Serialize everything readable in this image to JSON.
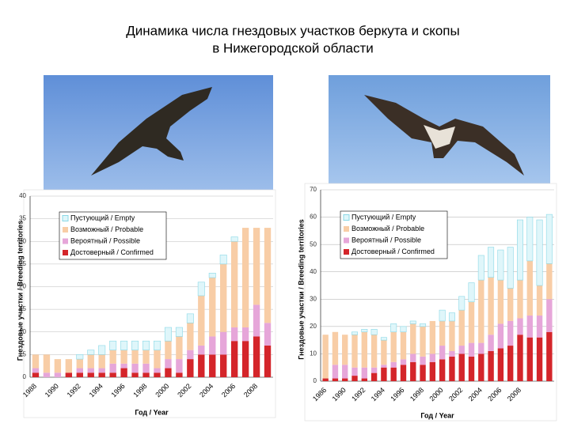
{
  "title": [
    "Динамика числа гнездовых участков беркута и скопы",
    "в Нижегородской области"
  ],
  "chart_data": [
    {
      "type": "bar",
      "stacked": true,
      "grid": true,
      "legend": "top-left",
      "ylabel": "Гнездовые участки / Breeding territories",
      "xlabel": "Год / Year",
      "categories": [
        "1988",
        null,
        "1990",
        null,
        "1992",
        null,
        "1994",
        null,
        "1996",
        null,
        "1998",
        null,
        "2000",
        null,
        "2002",
        null,
        "2004",
        null,
        "2006",
        null,
        "2008",
        null
      ],
      "ylim": [
        0,
        40
      ],
      "yticks": [
        0,
        5,
        10,
        15,
        20,
        25,
        30,
        35,
        40
      ],
      "series": [
        {
          "name": "Пустующий / Empty",
          "color": "#dff6fa",
          "values": [
            0,
            0,
            0,
            0,
            1,
            1,
            2,
            2,
            2,
            2,
            2,
            2,
            3,
            2,
            2,
            3,
            1,
            2,
            1,
            0,
            0,
            0
          ]
        },
        {
          "name": "Возможный / Probable",
          "color": "#f8cda6",
          "values": [
            3,
            4,
            3,
            3,
            2,
            3,
            3,
            3,
            3,
            3,
            3,
            4,
            4,
            5,
            6,
            11,
            13,
            15,
            19,
            22,
            17,
            21
          ]
        },
        {
          "name": "Вероятный / Possible",
          "color": "#e6a6d9",
          "values": [
            1,
            1,
            1,
            0,
            1,
            1,
            1,
            2,
            1,
            2,
            2,
            1,
            2,
            3,
            2,
            2,
            4,
            5,
            3,
            3,
            7,
            5
          ]
        },
        {
          "name": "Достоверный / Confirmed",
          "color": "#d4252a",
          "values": [
            1,
            0,
            0,
            1,
            1,
            1,
            1,
            1,
            2,
            1,
            1,
            1,
            2,
            1,
            4,
            5,
            5,
            5,
            8,
            8,
            9,
            7
          ]
        }
      ]
    },
    {
      "type": "bar",
      "stacked": true,
      "grid": true,
      "legend": "top-left",
      "ylabel": "Гнездовые участки / Breeding territories",
      "xlabel": "Год / Year",
      "categories": [
        "1986",
        null,
        "1990",
        null,
        "1992",
        null,
        "1994",
        null,
        "1996",
        null,
        "1998",
        null,
        "2000",
        null,
        "2002",
        null,
        "2004",
        null,
        "2006",
        null,
        "2008",
        null,
        null,
        null
      ],
      "ylim": [
        0,
        70
      ],
      "yticks": [
        0,
        10,
        20,
        30,
        40,
        50,
        60,
        70
      ],
      "series": [
        {
          "name": "Пустующий / Empty",
          "color": "#dff6fa",
          "values": [
            0,
            0,
            0,
            1,
            1,
            2,
            1,
            3,
            2,
            1,
            1,
            0,
            4,
            3,
            5,
            7,
            9,
            11,
            11,
            15,
            22,
            16,
            24,
            18
          ]
        },
        {
          "name": "Возможный / Probable",
          "color": "#f8cda6",
          "values": [
            16,
            12,
            11,
            12,
            13,
            12,
            9,
            11,
            10,
            11,
            11,
            12,
            9,
            11,
            13,
            15,
            23,
            21,
            16,
            12,
            14,
            20,
            11,
            13
          ]
        },
        {
          "name": "Вероятный / Possible",
          "color": "#e6a6d9",
          "values": [
            0,
            5,
            5,
            3,
            4,
            2,
            1,
            2,
            2,
            3,
            3,
            3,
            5,
            2,
            3,
            5,
            4,
            6,
            9,
            9,
            6,
            8,
            8,
            12
          ]
        },
        {
          "name": "Достоверный / Confirmed",
          "color": "#d4252a",
          "values": [
            1,
            1,
            1,
            2,
            1,
            3,
            5,
            5,
            6,
            7,
            6,
            7,
            8,
            9,
            10,
            9,
            10,
            11,
            12,
            13,
            17,
            16,
            16,
            18
          ]
        }
      ]
    }
  ]
}
